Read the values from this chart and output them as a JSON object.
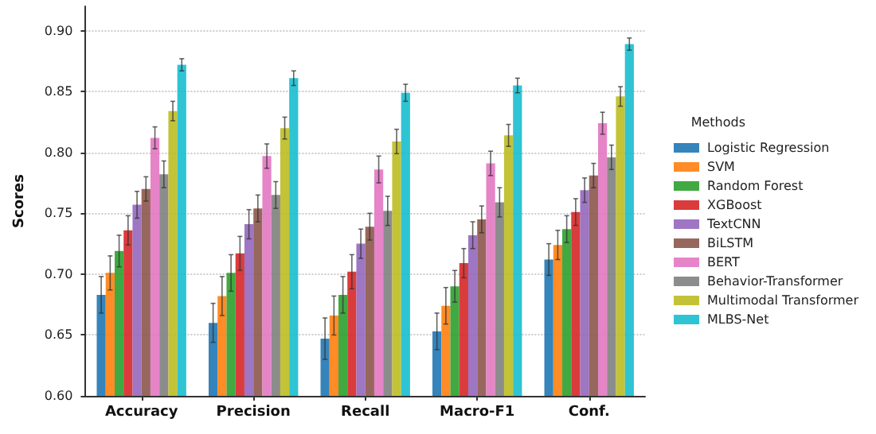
{
  "chart_data": {
    "type": "bar",
    "ylabel": "Scores",
    "legend_title": "Methods",
    "categories": [
      "Accuracy",
      "Precision",
      "Recall",
      "Macro-F1",
      "Conf."
    ],
    "series": [
      {
        "name": "Logistic Regression",
        "color": "#1f77b4",
        "values": [
          0.683,
          0.66,
          0.647,
          0.653,
          0.712
        ],
        "errors": [
          0.015,
          0.016,
          0.017,
          0.015,
          0.013
        ]
      },
      {
        "name": "SVM",
        "color": "#ff7f0e",
        "values": [
          0.701,
          0.682,
          0.666,
          0.674,
          0.724
        ],
        "errors": [
          0.014,
          0.016,
          0.016,
          0.015,
          0.012
        ]
      },
      {
        "name": "Random Forest",
        "color": "#2ca02c",
        "values": [
          0.719,
          0.701,
          0.683,
          0.69,
          0.737
        ],
        "errors": [
          0.013,
          0.015,
          0.015,
          0.013,
          0.011
        ]
      },
      {
        "name": "XGBoost",
        "color": "#d62728",
        "values": [
          0.736,
          0.717,
          0.702,
          0.709,
          0.751
        ],
        "errors": [
          0.012,
          0.014,
          0.014,
          0.012,
          0.011
        ]
      },
      {
        "name": "TextCNN",
        "color": "#9467bd",
        "values": [
          0.757,
          0.741,
          0.725,
          0.732,
          0.769
        ],
        "errors": [
          0.011,
          0.012,
          0.012,
          0.011,
          0.01
        ]
      },
      {
        "name": "BiLSTM",
        "color": "#8c564b",
        "values": [
          0.77,
          0.754,
          0.739,
          0.745,
          0.781
        ],
        "errors": [
          0.01,
          0.011,
          0.011,
          0.011,
          0.01
        ]
      },
      {
        "name": "BERT",
        "color": "#e377c2",
        "values": [
          0.812,
          0.797,
          0.786,
          0.791,
          0.824
        ],
        "errors": [
          0.009,
          0.01,
          0.011,
          0.01,
          0.009
        ]
      },
      {
        "name": "Behavior-Transformer",
        "color": "#7f7f7f",
        "values": [
          0.782,
          0.765,
          0.752,
          0.759,
          0.796
        ],
        "errors": [
          0.011,
          0.011,
          0.012,
          0.012,
          0.01
        ]
      },
      {
        "name": "Multimodal Transformer",
        "color": "#bcbd22",
        "values": [
          0.834,
          0.82,
          0.809,
          0.814,
          0.846
        ],
        "errors": [
          0.008,
          0.009,
          0.01,
          0.009,
          0.008
        ]
      },
      {
        "name": "MLBS-Net",
        "color": "#17becf",
        "values": [
          0.872,
          0.861,
          0.849,
          0.855,
          0.889
        ],
        "errors": [
          0.005,
          0.006,
          0.007,
          0.006,
          0.005
        ]
      }
    ],
    "ylim": [
      0.6,
      0.92
    ],
    "yticks": [
      {
        "value": 0.6,
        "label": "0.60"
      },
      0.65,
      {
        "value": 0.7,
        "label": "0.70"
      },
      0.75,
      {
        "value": 0.8,
        "label": "0.80"
      },
      0.85,
      {
        "value": 0.9,
        "label": "0.90"
      }
    ],
    "grid": "y",
    "legend": "right"
  }
}
